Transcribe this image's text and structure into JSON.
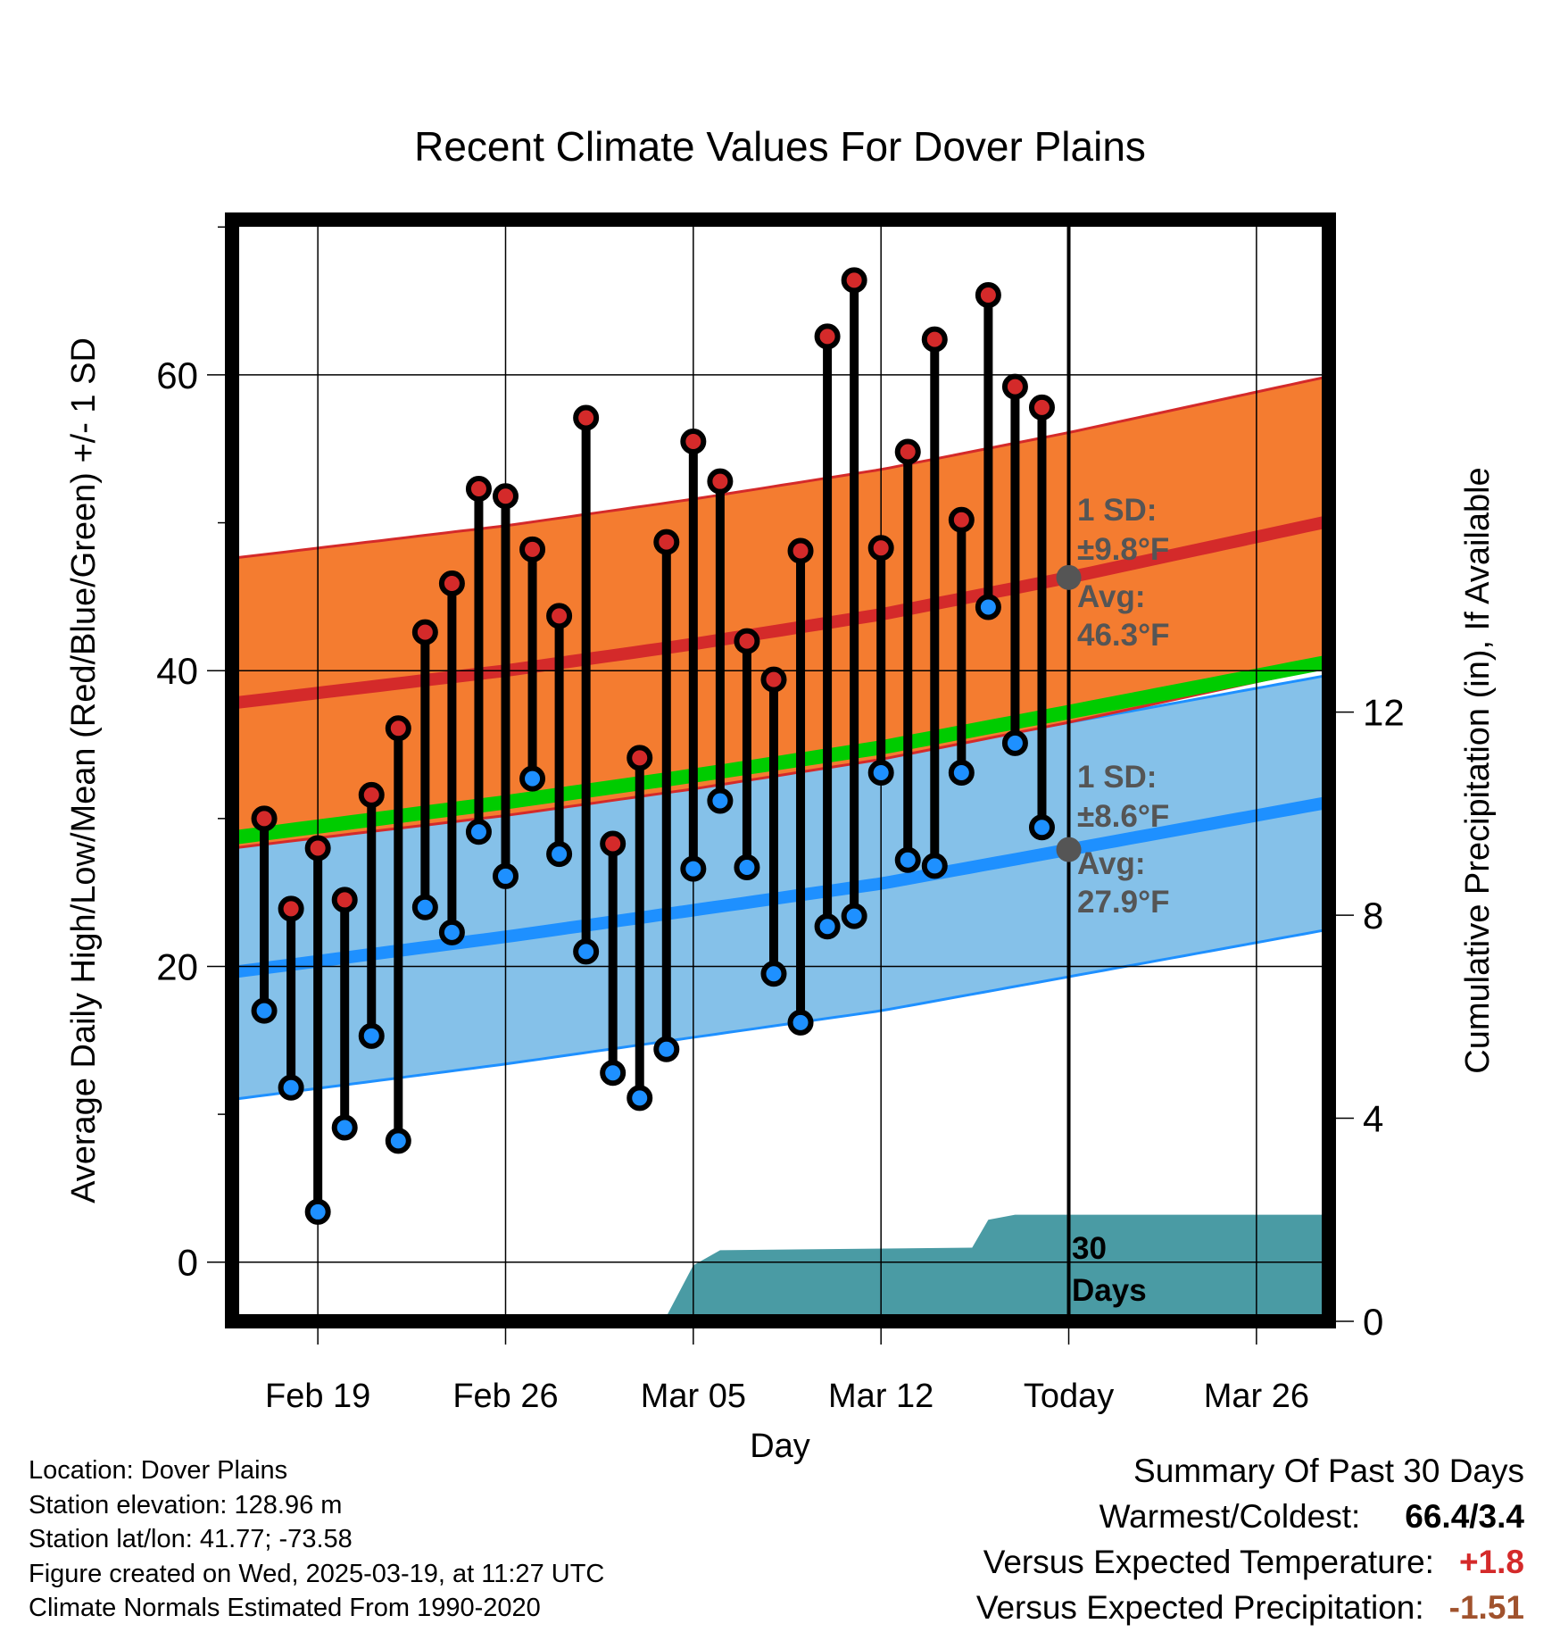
{
  "title": "Recent Climate Values For Dover Plains",
  "left_axis_label": "Average Daily High/Low/Mean (Red/Blue/Green) +/- 1 SD",
  "right_axis_label": "Cumulative Precipitation (in), If Available",
  "x_axis_label": "Day",
  "high_annotation": {
    "sd_label": "1 SD:",
    "sd_value": "±9.8°F",
    "avg_label": "Avg:",
    "avg_value": "46.3°F"
  },
  "low_annotation": {
    "sd_label": "1 SD:",
    "sd_value": "±8.6°F",
    "avg_label": "Avg:",
    "avg_value": "27.9°F"
  },
  "precip_label_line1": "30",
  "precip_label_line2": "Days",
  "info": {
    "location": "Location: Dover Plains",
    "elevation": "Station elevation: 128.96 m",
    "latlon": "Station lat/lon: 41.77; -73.58",
    "created": "Figure created on Wed, 2025-03-19, at 11:27 UTC",
    "normals": "Climate Normals Estimated From 1990-2020"
  },
  "summary": {
    "title": "Summary Of Past 30 Days",
    "warmest_label": "Warmest/Coldest:",
    "warmest_value": "66.4/3.4",
    "temp_label": "Versus Expected Temperature:",
    "temp_value": "+1.8",
    "precip_label": "Versus Expected Precipitation:",
    "precip_value": "-1.51"
  },
  "colors": {
    "high": "#d42a2a",
    "high_band": "#f47c30",
    "low": "#1e90ff",
    "low_band": "#85c1e9",
    "mean": "#00cc00",
    "precip": "#4a9ba4",
    "annotation": "#555555",
    "temp_anomaly": "#d42a2a",
    "precip_anomaly": "#a0522d"
  },
  "chart_data": {
    "type": "line",
    "x_tick_labels": [
      "Feb 19",
      "Feb 26",
      "Mar 05",
      "Mar 12",
      "Today",
      "Mar 26"
    ],
    "x_tick_days": [
      -28,
      -21,
      -14,
      -7,
      0,
      7
    ],
    "x_range_days": [
      -31.2,
      9.7
    ],
    "left_y_ticks": [
      0,
      20,
      40,
      60
    ],
    "left_ylim": [
      -4,
      70.5
    ],
    "right_y_ticks": [
      0,
      4,
      8,
      12
    ],
    "right_ylim": [
      0,
      21.7
    ],
    "series": [
      {
        "name": "High",
        "days": [
          -30,
          -29,
          -28,
          -27,
          -26,
          -25,
          -24,
          -23,
          -22,
          -21,
          -20,
          -19,
          -18,
          -17,
          -16,
          -15,
          -14,
          -13,
          -12,
          -11,
          -10,
          -9,
          -8,
          -7,
          -6,
          -5,
          -4,
          -3,
          -2,
          -1
        ],
        "values": [
          30.0,
          23.9,
          28.0,
          24.5,
          31.6,
          36.1,
          42.6,
          45.9,
          52.3,
          51.8,
          48.2,
          43.7,
          57.1,
          28.3,
          34.1,
          48.7,
          55.5,
          52.8,
          42.0,
          39.4,
          48.1,
          62.6,
          66.4,
          48.3,
          54.8,
          62.4,
          50.2,
          65.4,
          59.2,
          57.8
        ]
      },
      {
        "name": "Low",
        "days": [
          -30,
          -29,
          -28,
          -27,
          -26,
          -25,
          -24,
          -23,
          -22,
          -21,
          -20,
          -19,
          -18,
          -17,
          -16,
          -15,
          -14,
          -13,
          -12,
          -11,
          -10,
          -9,
          -8,
          -7,
          -6,
          -5,
          -4,
          -3,
          -2,
          -1
        ],
        "values": [
          17.0,
          11.8,
          3.4,
          9.1,
          15.3,
          8.2,
          24.0,
          22.3,
          29.1,
          26.1,
          32.7,
          27.6,
          21.0,
          12.8,
          11.1,
          14.4,
          26.6,
          31.2,
          26.7,
          19.5,
          16.2,
          22.7,
          23.4,
          33.1,
          27.2,
          26.8,
          33.1,
          44.3,
          35.1,
          29.4
        ]
      }
    ],
    "normals": {
      "days": [
        -31.2,
        -21,
        -14,
        -7,
        0,
        9.7
      ],
      "high_avg": [
        37.8,
        40.0,
        41.8,
        43.8,
        46.3,
        50.1
      ],
      "high_sd": 9.8,
      "low_avg": [
        19.6,
        22.0,
        23.8,
        25.6,
        27.9,
        31.1
      ],
      "low_sd": 8.6,
      "mean": [
        28.7,
        31.1,
        32.9,
        34.8,
        37.2,
        40.6
      ]
    },
    "precipitation": {
      "days": [
        -31.2,
        -15.1,
        -14,
        -13,
        -3.6,
        -3,
        -2,
        9.7
      ],
      "values": [
        0,
        0,
        1.1,
        1.4,
        1.45,
        2.0,
        2.1,
        2.1
      ]
    }
  }
}
